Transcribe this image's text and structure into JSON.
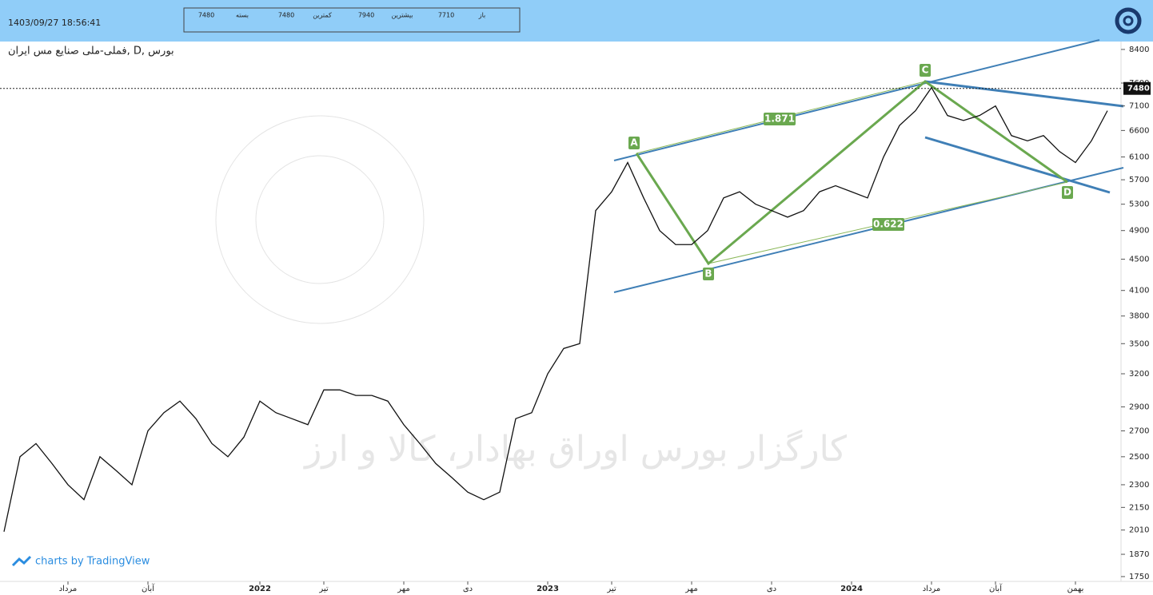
{
  "header": {
    "datetime": "1403/09/27 18:56:41",
    "quote": [
      {
        "label": "باز",
        "value": 7710
      },
      {
        "label": "بیشترین",
        "value": 7940
      },
      {
        "label": "کمترین",
        "value": 7480
      },
      {
        "label": "بسته",
        "value": 7480
      }
    ]
  },
  "chart_data": {
    "type": "line",
    "title": "فملی-ملی صنایع مس ایران, D, بورس",
    "categories": [
      null,
      null,
      null,
      null,
      "مرداد",
      null,
      null,
      null,
      null,
      "آبان",
      null,
      null,
      null,
      null,
      null,
      null,
      "2022",
      null,
      null,
      null,
      "تیر",
      null,
      null,
      null,
      null,
      "مهر",
      null,
      null,
      null,
      "دی",
      null,
      null,
      null,
      null,
      "2023",
      null,
      null,
      null,
      "تیر",
      null,
      null,
      null,
      null,
      "مهر",
      null,
      null,
      null,
      null,
      "دی",
      null,
      null,
      null,
      null,
      "2024",
      null,
      null,
      null,
      null,
      "مرداد",
      null,
      null,
      null,
      "آبان",
      null,
      null,
      null,
      null,
      "بهمن",
      null,
      null
    ],
    "series": [
      {
        "color": "#111111",
        "values": [
          2000,
          2500,
          2600,
          2450,
          2300,
          2200,
          2500,
          2400,
          2300,
          2700,
          2850,
          2950,
          2800,
          2600,
          2500,
          2650,
          2950,
          2850,
          2800,
          2750,
          3050,
          3050,
          3000,
          3000,
          2950,
          2750,
          2600,
          2450,
          2350,
          2250,
          2200,
          2250,
          2800,
          2850,
          3200,
          3450,
          3500,
          5200,
          5500,
          6000,
          5400,
          4900,
          4700,
          4700,
          4900,
          5400,
          5500,
          5300,
          5200,
          5100,
          5200,
          5500,
          5600,
          5500,
          5400,
          6100,
          6700,
          7000,
          7500,
          6900,
          6800,
          6900,
          7100,
          6500,
          6400,
          6500,
          6200,
          6000,
          6400,
          7000
        ]
      }
    ],
    "ylim": [
      1725,
      8600
    ],
    "log_scale": true,
    "yticks": [
      1750,
      1870,
      2010,
      2150,
      2300,
      2500,
      2700,
      2900,
      3200,
      3500,
      3800,
      4100,
      4500,
      4900,
      5300,
      5700,
      6100,
      6600,
      7100,
      7600,
      8400
    ],
    "last_price": 7480,
    "annotations": [
      "A",
      "B",
      "C",
      "D",
      "1.871",
      "0.622"
    ],
    "watermark": "کارگزار بورس اوراق بهادار، کالا و ارز",
    "credit": "charts by TradingView"
  }
}
